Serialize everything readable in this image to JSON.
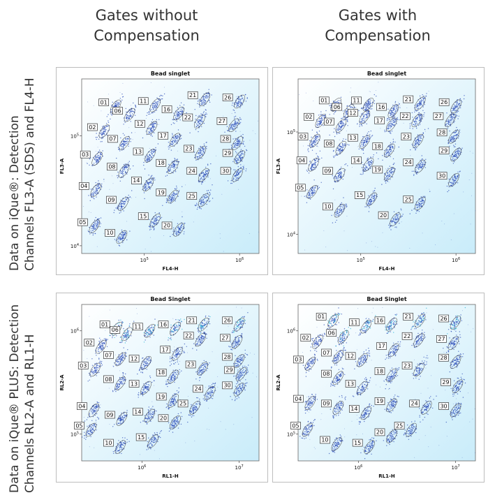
{
  "columns": [
    {
      "line1": "Gates without",
      "line2": "Compensation"
    },
    {
      "line1": "Gates with",
      "line2": "Compensation"
    }
  ],
  "rows": [
    {
      "line1": "Data on iQue®: Detection",
      "line2": "Channels FL3-A (SDS) and FL4-H"
    },
    {
      "line1": "Data on iQue® PLUS: Detection",
      "line2": "Channels RL2-A and RL1-H"
    }
  ],
  "colors": {
    "bg_light": "#ffffff",
    "bg_cyan": "#c9ecfa",
    "dot_blue": "#2f4fb8",
    "dot_cyan": "#2bb5d6"
  },
  "chart_data": [
    {
      "type": "scatter",
      "panel": "top-left",
      "title": "Bead singlet",
      "xlabel": "FL4-H",
      "ylabel": "FL3-A",
      "scale": "log",
      "xticks": [
        "10^5",
        "10^6"
      ],
      "yticks": [
        "10^4",
        "10^5"
      ],
      "xlim": [
        22000,
        1600000
      ],
      "ylim": [
        8500,
        330000
      ],
      "gates": [
        {
          "label": "01",
          "x": 50000,
          "y": 185000
        },
        {
          "label": "02",
          "x": 38000,
          "y": 110000
        },
        {
          "label": "03",
          "x": 32000,
          "y": 62000
        },
        {
          "label": "04",
          "x": 31000,
          "y": 32000
        },
        {
          "label": "05",
          "x": 30000,
          "y": 15000
        },
        {
          "label": "06",
          "x": 70000,
          "y": 155000
        },
        {
          "label": "07",
          "x": 62000,
          "y": 86000
        },
        {
          "label": "08",
          "x": 61000,
          "y": 48000
        },
        {
          "label": "09",
          "x": 60000,
          "y": 24000
        },
        {
          "label": "10",
          "x": 58000,
          "y": 12000
        },
        {
          "label": "11",
          "x": 130000,
          "y": 190000
        },
        {
          "label": "12",
          "x": 120000,
          "y": 118000
        },
        {
          "label": "13",
          "x": 115000,
          "y": 66000
        },
        {
          "label": "14",
          "x": 110000,
          "y": 36000
        },
        {
          "label": "15",
          "x": 130000,
          "y": 17000
        },
        {
          "label": "16",
          "x": 230000,
          "y": 160000
        },
        {
          "label": "17",
          "x": 210000,
          "y": 92000
        },
        {
          "label": "18",
          "x": 200000,
          "y": 52000
        },
        {
          "label": "19",
          "x": 200000,
          "y": 28000
        },
        {
          "label": "20",
          "x": 230000,
          "y": 14000
        },
        {
          "label": "21",
          "x": 430000,
          "y": 215000
        },
        {
          "label": "22",
          "x": 380000,
          "y": 135000
        },
        {
          "label": "23",
          "x": 390000,
          "y": 70000
        },
        {
          "label": "24",
          "x": 420000,
          "y": 44000
        },
        {
          "label": "25",
          "x": 420000,
          "y": 26000
        },
        {
          "label": "26",
          "x": 1000000,
          "y": 205000
        },
        {
          "label": "27",
          "x": 870000,
          "y": 125000
        },
        {
          "label": "28",
          "x": 950000,
          "y": 86000
        },
        {
          "label": "29",
          "x": 1000000,
          "y": 64000
        },
        {
          "label": "30",
          "x": 950000,
          "y": 44000
        }
      ]
    },
    {
      "type": "scatter",
      "panel": "top-right",
      "title": "Bead singlet",
      "xlabel": "FL4-H",
      "ylabel": "FL3-A",
      "scale": "log",
      "xticks": [
        "10^5",
        "10^6"
      ],
      "yticks": [
        "10^4",
        "10^5"
      ],
      "xlim": [
        22000,
        1600000
      ],
      "ylim": [
        6500,
        330000
      ],
      "gates": [
        {
          "label": "01",
          "x": 55000,
          "y": 185000
        },
        {
          "label": "02",
          "x": 38000,
          "y": 128000
        },
        {
          "label": "03",
          "x": 33000,
          "y": 82000
        },
        {
          "label": "04",
          "x": 32000,
          "y": 48000
        },
        {
          "label": "05",
          "x": 31000,
          "y": 26000
        },
        {
          "label": "06",
          "x": 75000,
          "y": 160000
        },
        {
          "label": "07",
          "x": 62000,
          "y": 115000
        },
        {
          "label": "08",
          "x": 62000,
          "y": 70000
        },
        {
          "label": "09",
          "x": 60000,
          "y": 38000
        },
        {
          "label": "10",
          "x": 60000,
          "y": 17000
        },
        {
          "label": "11",
          "x": 120000,
          "y": 185000
        },
        {
          "label": "12",
          "x": 110000,
          "y": 140000
        },
        {
          "label": "13",
          "x": 110000,
          "y": 80000
        },
        {
          "label": "14",
          "x": 120000,
          "y": 48000
        },
        {
          "label": "15",
          "x": 130000,
          "y": 22000
        },
        {
          "label": "16",
          "x": 220000,
          "y": 160000
        },
        {
          "label": "17",
          "x": 210000,
          "y": 118000
        },
        {
          "label": "18",
          "x": 200000,
          "y": 66000
        },
        {
          "label": "19",
          "x": 200000,
          "y": 39000
        },
        {
          "label": "20",
          "x": 230000,
          "y": 14000
        },
        {
          "label": "21",
          "x": 420000,
          "y": 190000
        },
        {
          "label": "22",
          "x": 390000,
          "y": 130000
        },
        {
          "label": "23",
          "x": 400000,
          "y": 82000
        },
        {
          "label": "24",
          "x": 420000,
          "y": 46000
        },
        {
          "label": "25",
          "x": 420000,
          "y": 20000
        },
        {
          "label": "26",
          "x": 1000000,
          "y": 178000
        },
        {
          "label": "27",
          "x": 870000,
          "y": 130000
        },
        {
          "label": "28",
          "x": 950000,
          "y": 90000
        },
        {
          "label": "29",
          "x": 1000000,
          "y": 60000
        },
        {
          "label": "30",
          "x": 950000,
          "y": 34000
        }
      ]
    },
    {
      "type": "scatter",
      "panel": "bottom-left",
      "title": "Bead Singlet",
      "xlabel": "RL1-H",
      "ylabel": "RL2-A",
      "scale": "log",
      "xticks": [
        "10^6",
        "10^7"
      ],
      "yticks": [
        "10^5",
        "10^6"
      ],
      "xlim": [
        240000,
        16000000
      ],
      "ylim": [
        55000,
        1800000
      ],
      "gates": [
        {
          "label": "01",
          "x": 550000,
          "y": 1050000
        },
        {
          "label": "02",
          "x": 380000,
          "y": 700000
        },
        {
          "label": "03",
          "x": 330000,
          "y": 420000
        },
        {
          "label": "04",
          "x": 320000,
          "y": 170000
        },
        {
          "label": "05",
          "x": 300000,
          "y": 110000
        },
        {
          "label": "06",
          "x": 700000,
          "y": 930000
        },
        {
          "label": "07",
          "x": 600000,
          "y": 530000
        },
        {
          "label": "08",
          "x": 600000,
          "y": 310000
        },
        {
          "label": "09",
          "x": 620000,
          "y": 140000
        },
        {
          "label": "10",
          "x": 600000,
          "y": 75000
        },
        {
          "label": "11",
          "x": 1200000,
          "y": 1000000
        },
        {
          "label": "12",
          "x": 1100000,
          "y": 490000
        },
        {
          "label": "13",
          "x": 1100000,
          "y": 280000
        },
        {
          "label": "14",
          "x": 1200000,
          "y": 150000
        },
        {
          "label": "15",
          "x": 1300000,
          "y": 85000
        },
        {
          "label": "16",
          "x": 2200000,
          "y": 1050000
        },
        {
          "label": "17",
          "x": 2300000,
          "y": 600000
        },
        {
          "label": "18",
          "x": 2100000,
          "y": 360000
        },
        {
          "label": "19",
          "x": 2100000,
          "y": 210000
        },
        {
          "label": "20",
          "x": 2200000,
          "y": 130000
        },
        {
          "label": "21",
          "x": 4300000,
          "y": 1150000
        },
        {
          "label": "22",
          "x": 4000000,
          "y": 820000
        },
        {
          "label": "23",
          "x": 4200000,
          "y": 430000
        },
        {
          "label": "24",
          "x": 5000000,
          "y": 250000
        },
        {
          "label": "25",
          "x": 3500000,
          "y": 180000
        },
        {
          "label": "26",
          "x": 10000000,
          "y": 1150000
        },
        {
          "label": "27",
          "x": 9500000,
          "y": 780000
        },
        {
          "label": "28",
          "x": 10000000,
          "y": 510000
        },
        {
          "label": "29",
          "x": 10500000,
          "y": 380000
        },
        {
          "label": "30",
          "x": 10000000,
          "y": 270000
        }
      ]
    },
    {
      "type": "scatter",
      "panel": "bottom-right",
      "title": "Bead Singlet",
      "xlabel": "RL1-H",
      "ylabel": "RL2-A",
      "scale": "log",
      "xticks": [
        "10^6",
        "10^7"
      ],
      "yticks": [
        "10^5",
        "10^6"
      ],
      "xlim": [
        240000,
        16000000
      ],
      "ylim": [
        55000,
        1800000
      ],
      "gates": [
        {
          "label": "01",
          "x": 550000,
          "y": 1250000
        },
        {
          "label": "02",
          "x": 380000,
          "y": 780000
        },
        {
          "label": "03",
          "x": 320000,
          "y": 480000
        },
        {
          "label": "04",
          "x": 320000,
          "y": 200000
        },
        {
          "label": "05",
          "x": 300000,
          "y": 110000
        },
        {
          "label": "06",
          "x": 700000,
          "y": 870000
        },
        {
          "label": "07",
          "x": 620000,
          "y": 560000
        },
        {
          "label": "08",
          "x": 620000,
          "y": 350000
        },
        {
          "label": "09",
          "x": 620000,
          "y": 180000
        },
        {
          "label": "10",
          "x": 600000,
          "y": 80000
        },
        {
          "label": "11",
          "x": 1200000,
          "y": 1100000
        },
        {
          "label": "12",
          "x": 1100000,
          "y": 520000
        },
        {
          "label": "13",
          "x": 1100000,
          "y": 280000
        },
        {
          "label": "14",
          "x": 1200000,
          "y": 160000
        },
        {
          "label": "15",
          "x": 1300000,
          "y": 75000
        },
        {
          "label": "16",
          "x": 2200000,
          "y": 1150000
        },
        {
          "label": "17",
          "x": 2300000,
          "y": 650000
        },
        {
          "label": "18",
          "x": 2200000,
          "y": 370000
        },
        {
          "label": "19",
          "x": 2200000,
          "y": 190000
        },
        {
          "label": "20",
          "x": 2200000,
          "y": 95000
        },
        {
          "label": "21",
          "x": 4300000,
          "y": 1250000
        },
        {
          "label": "22",
          "x": 4200000,
          "y": 810000
        },
        {
          "label": "23",
          "x": 4200000,
          "y": 420000
        },
        {
          "label": "24",
          "x": 5000000,
          "y": 180000
        },
        {
          "label": "25",
          "x": 3500000,
          "y": 110000
        },
        {
          "label": "26",
          "x": 10000000,
          "y": 1200000
        },
        {
          "label": "27",
          "x": 9500000,
          "y": 760000
        },
        {
          "label": "28",
          "x": 10000000,
          "y": 500000
        },
        {
          "label": "29",
          "x": 10500000,
          "y": 290000
        },
        {
          "label": "30",
          "x": 10000000,
          "y": 170000
        }
      ]
    }
  ]
}
